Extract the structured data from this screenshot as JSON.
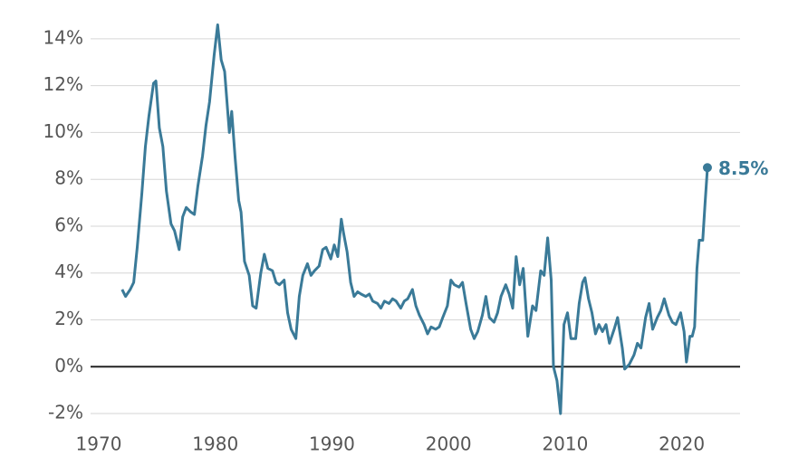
{
  "chart_data": {
    "type": "line",
    "x": [
      1972.0,
      1972.3,
      1972.7,
      1973.0,
      1973.3,
      1973.7,
      1974.0,
      1974.3,
      1974.7,
      1974.9,
      1975.2,
      1975.5,
      1975.8,
      1976.2,
      1976.5,
      1976.9,
      1977.2,
      1977.5,
      1977.9,
      1978.2,
      1978.5,
      1978.9,
      1979.2,
      1979.5,
      1979.9,
      1980.2,
      1980.5,
      1980.8,
      1981.2,
      1981.4,
      1981.7,
      1982.0,
      1982.2,
      1982.5,
      1982.9,
      1983.2,
      1983.5,
      1983.9,
      1984.2,
      1984.5,
      1984.9,
      1985.2,
      1985.5,
      1985.9,
      1986.2,
      1986.5,
      1986.9,
      1987.2,
      1987.5,
      1987.9,
      1988.2,
      1988.5,
      1988.9,
      1989.2,
      1989.5,
      1989.9,
      1990.2,
      1990.5,
      1990.8,
      1991.0,
      1991.3,
      1991.6,
      1991.9,
      1992.2,
      1992.5,
      1992.9,
      1993.2,
      1993.5,
      1993.9,
      1994.2,
      1994.5,
      1994.9,
      1995.2,
      1995.5,
      1995.9,
      1996.2,
      1996.5,
      1996.9,
      1997.2,
      1997.5,
      1997.9,
      1998.2,
      1998.5,
      1998.9,
      1999.2,
      1999.5,
      1999.9,
      2000.2,
      2000.5,
      2000.9,
      2001.2,
      2001.5,
      2001.9,
      2002.2,
      2002.5,
      2002.9,
      2003.2,
      2003.5,
      2003.9,
      2004.2,
      2004.5,
      2004.9,
      2005.2,
      2005.5,
      2005.8,
      2006.1,
      2006.4,
      2006.8,
      2007.2,
      2007.5,
      2007.9,
      2008.2,
      2008.5,
      2008.8,
      2009.0,
      2009.3,
      2009.6,
      2009.9,
      2010.2,
      2010.5,
      2010.9,
      2011.2,
      2011.5,
      2011.7,
      2012.0,
      2012.3,
      2012.6,
      2012.9,
      2013.2,
      2013.5,
      2013.8,
      2014.2,
      2014.5,
      2014.9,
      2015.1,
      2015.5,
      2015.9,
      2016.2,
      2016.5,
      2016.9,
      2017.2,
      2017.5,
      2017.9,
      2018.2,
      2018.5,
      2018.9,
      2019.2,
      2019.5,
      2019.9,
      2020.2,
      2020.4,
      2020.7,
      2020.9,
      2021.1,
      2021.3,
      2021.5,
      2021.8,
      2022.0,
      2022.2
    ],
    "series": [
      {
        "color": "#3a7a98",
        "values": [
          3.3,
          3.0,
          3.3,
          3.6,
          5.1,
          7.4,
          9.4,
          10.7,
          12.1,
          12.2,
          10.2,
          9.4,
          7.5,
          6.1,
          5.8,
          5.0,
          6.4,
          6.8,
          6.6,
          6.5,
          7.7,
          9.0,
          10.3,
          11.3,
          13.3,
          14.6,
          13.1,
          12.6,
          10.0,
          10.9,
          8.9,
          7.1,
          6.6,
          4.5,
          3.9,
          2.6,
          2.5,
          4.0,
          4.8,
          4.2,
          4.1,
          3.6,
          3.5,
          3.7,
          2.3,
          1.6,
          1.2,
          3.0,
          3.9,
          4.4,
          3.9,
          4.1,
          4.3,
          5.0,
          5.1,
          4.6,
          5.2,
          4.7,
          6.3,
          5.7,
          4.9,
          3.6,
          3.0,
          3.2,
          3.1,
          3.0,
          3.1,
          2.8,
          2.7,
          2.5,
          2.8,
          2.7,
          2.9,
          2.8,
          2.5,
          2.8,
          2.9,
          3.3,
          2.6,
          2.2,
          1.8,
          1.4,
          1.7,
          1.6,
          1.7,
          2.1,
          2.6,
          3.7,
          3.5,
          3.4,
          3.6,
          2.7,
          1.6,
          1.2,
          1.5,
          2.2,
          3.0,
          2.1,
          1.9,
          2.3,
          3.0,
          3.5,
          3.1,
          2.5,
          4.7,
          3.5,
          4.2,
          1.3,
          2.6,
          2.4,
          4.1,
          3.9,
          5.5,
          3.7,
          0.0,
          -0.6,
          -2.0,
          1.8,
          2.3,
          1.2,
          1.2,
          2.7,
          3.6,
          3.8,
          2.9,
          2.3,
          1.4,
          1.8,
          1.5,
          1.8,
          1.0,
          1.6,
          2.1,
          0.8,
          -0.1,
          0.1,
          0.5,
          1.0,
          0.8,
          2.1,
          2.7,
          1.6,
          2.1,
          2.4,
          2.9,
          2.2,
          1.9,
          1.8,
          2.3,
          1.5,
          0.2,
          1.3,
          1.3,
          1.7,
          4.2,
          5.4,
          5.4,
          7.0,
          8.5
        ]
      }
    ],
    "annotation": {
      "x": 2022.2,
      "value": 8.5,
      "label": "8.5%"
    },
    "xlim": [
      1969.3,
      2025
    ],
    "xticks": [
      1970,
      1980,
      1990,
      2000,
      2010,
      2020
    ],
    "ylim": [
      -2.5,
      15
    ],
    "yticks": [
      {
        "value": -2,
        "label": "-2%"
      },
      {
        "value": 0,
        "label": "0%"
      },
      {
        "value": 2,
        "label": "2%"
      },
      {
        "value": 4,
        "label": "4%"
      },
      {
        "value": 6,
        "label": "6%"
      },
      {
        "value": 8,
        "label": "8%"
      },
      {
        "value": 10,
        "label": "10%"
      },
      {
        "value": 12,
        "label": "12%"
      },
      {
        "value": 14,
        "label": "14%"
      }
    ],
    "grid": true
  }
}
